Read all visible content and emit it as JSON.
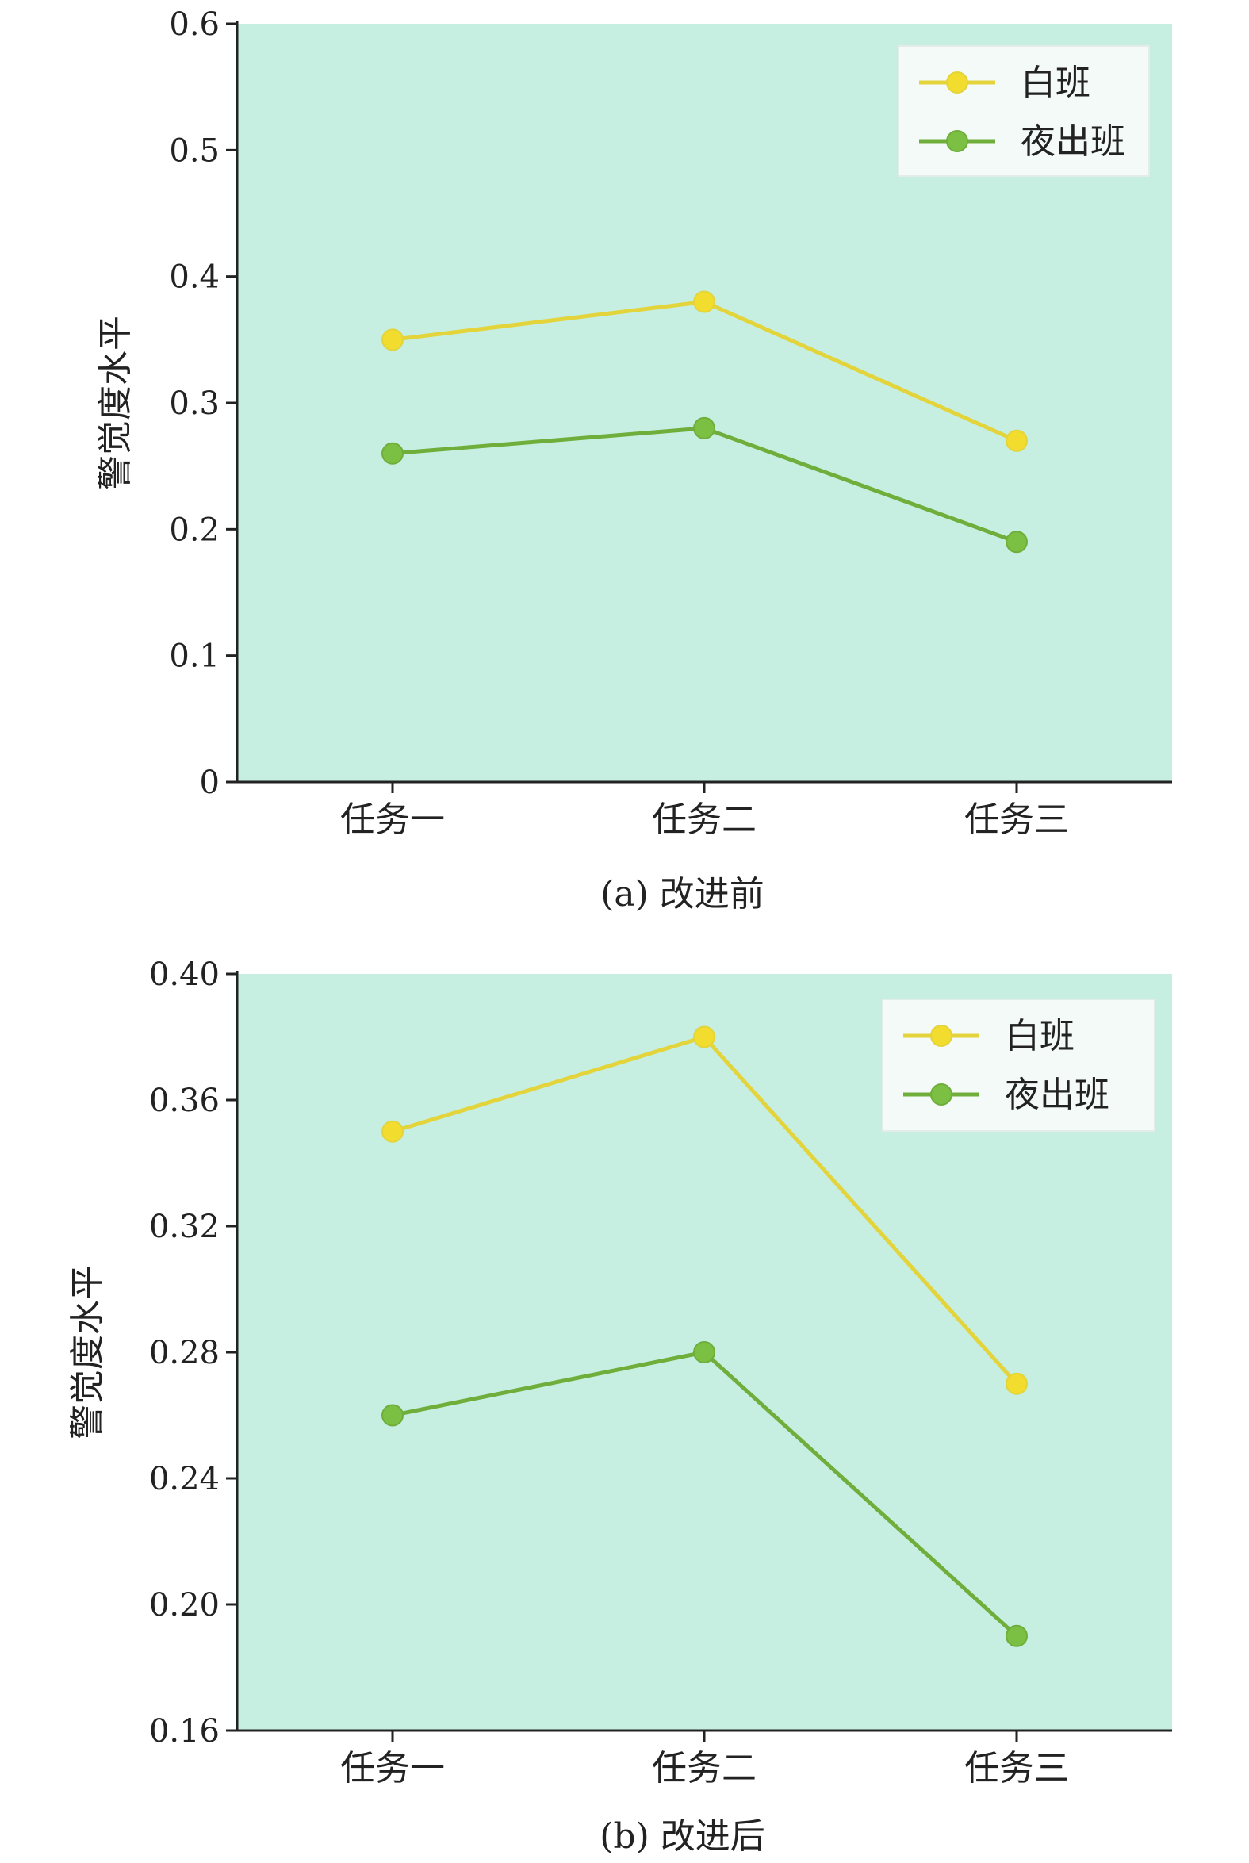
{
  "colors": {
    "plot_bg": "#c6efe2",
    "day": "#e3d43c",
    "day_marker": "#f2dc2e",
    "night": "#6fae3a",
    "night_marker": "#7bc043",
    "axis": "#222222",
    "legend_bg": "#f4faf7"
  },
  "chart_data": [
    {
      "type": "line",
      "caption": "(a) 改进前",
      "categories": [
        "任务一",
        "任务二",
        "任务三"
      ],
      "ylabel": "警觉度水平",
      "ylim": [
        0,
        0.6
      ],
      "yticks": [
        0,
        0.1,
        0.2,
        0.3,
        0.4,
        0.5,
        0.6
      ],
      "ytick_labels": [
        "0",
        "0.1",
        "0.2",
        "0.3",
        "0.4",
        "0.5",
        "0.6"
      ],
      "legend_position": "top-right",
      "series": [
        {
          "name": "白班",
          "values": [
            0.35,
            0.38,
            0.27
          ]
        },
        {
          "name": "夜出班",
          "values": [
            0.26,
            0.28,
            0.19
          ]
        }
      ]
    },
    {
      "type": "line",
      "caption": "(b) 改进后",
      "categories": [
        "任务一",
        "任务二",
        "任务三"
      ],
      "ylabel": "警觉度水平",
      "ylim": [
        0.16,
        0.4
      ],
      "yticks": [
        0.16,
        0.2,
        0.24,
        0.28,
        0.32,
        0.36,
        0.4
      ],
      "ytick_labels": [
        "0.16",
        "0.20",
        "0.24",
        "0.28",
        "0.32",
        "0.36",
        "0.40"
      ],
      "legend_position": "top-right",
      "series": [
        {
          "name": "白班",
          "values": [
            0.35,
            0.38,
            0.27
          ]
        },
        {
          "name": "夜出班",
          "values": [
            0.26,
            0.28,
            0.19
          ]
        }
      ]
    }
  ]
}
